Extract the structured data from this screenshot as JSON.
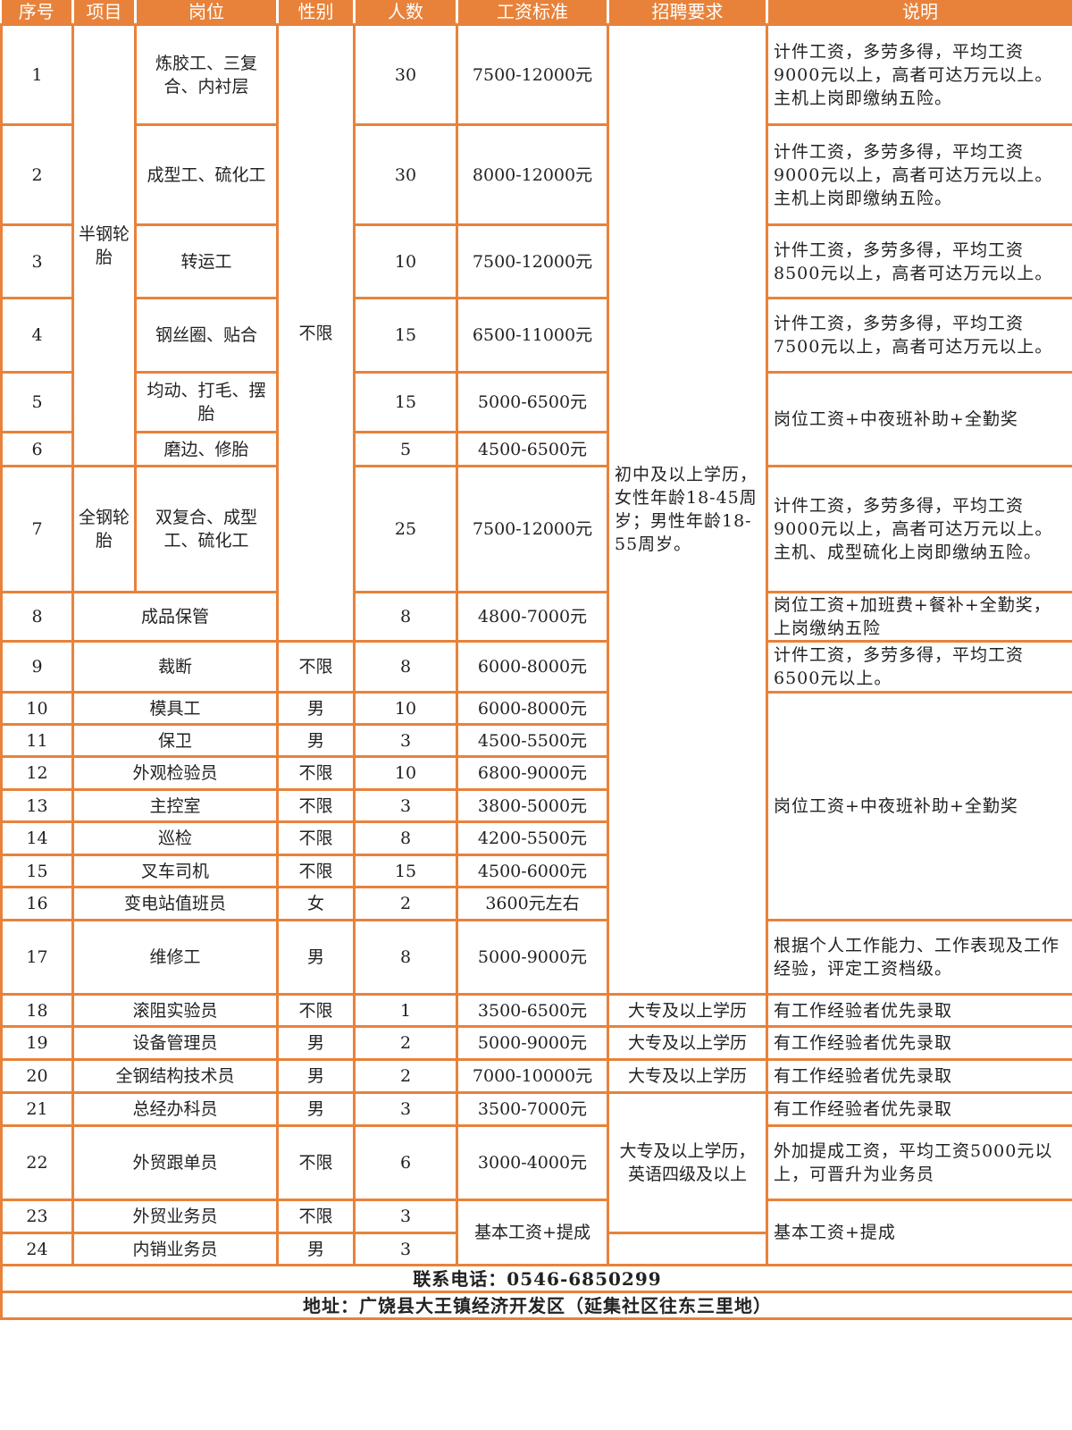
{
  "headers": [
    "序号",
    "项目",
    "岗位",
    "性别",
    "人数",
    "工资标准",
    "招聘要求",
    "说明"
  ],
  "rows": [
    {
      "no": "1",
      "project": "半钢轮胎",
      "position": "炼胶工、三复合、内衬层",
      "gender": "不限",
      "count": "30",
      "salary": "7500-12000元",
      "requirement": "初中及以上学历，女性年龄18-45周岁；男性年龄18-55周岁。",
      "note": "计件工资，多劳多得，平均工资9000元以上，高者可达万元以上。主机上岗即缴纳五险。"
    },
    {
      "no": "2",
      "position": "成型工、硫化工",
      "count": "30",
      "salary": "8000-12000元",
      "note": "计件工资，多劳多得，平均工资9000元以上，高者可达万元以上。主机上岗即缴纳五险。"
    },
    {
      "no": "3",
      "position": "转运工",
      "count": "10",
      "salary": "7500-12000元",
      "note": "计件工资，多劳多得，平均工资8500元以上，高者可达万元以上。"
    },
    {
      "no": "4",
      "position": "钢丝圈、贴合",
      "count": "15",
      "salary": "6500-11000元",
      "note": "计件工资，多劳多得，平均工资7500元以上，高者可达万元以上。"
    },
    {
      "no": "5",
      "position": "均动、打毛、摆胎",
      "count": "15",
      "salary": "5000-6500元",
      "note": "岗位工资+中夜班补助+全勤奖"
    },
    {
      "no": "6",
      "position": "磨边、修胎",
      "count": "5",
      "salary": "4500-6500元"
    },
    {
      "no": "7",
      "project": "全钢轮胎",
      "position": "双复合、成型工、硫化工",
      "count": "25",
      "salary": "7500-12000元",
      "note": "计件工资，多劳多得，平均工资9000元以上，高者可达万元以上。主机、成型硫化上岗即缴纳五险。"
    },
    {
      "no": "8",
      "position": "成品保管",
      "count": "8",
      "salary": "4800-7000元",
      "note": "岗位工资+加班费+餐补+全勤奖，上岗缴纳五险"
    },
    {
      "no": "9",
      "position": "裁断",
      "gender": "不限",
      "count": "8",
      "salary": "6000-8000元",
      "note": "计件工资，多劳多得，平均工资6500元以上。"
    },
    {
      "no": "10",
      "position": "模具工",
      "gender": "男",
      "count": "10",
      "salary": "6000-8000元",
      "note": "岗位工资+中夜班补助+全勤奖"
    },
    {
      "no": "11",
      "position": "保卫",
      "gender": "男",
      "count": "3",
      "salary": "4500-5500元"
    },
    {
      "no": "12",
      "position": "外观检验员",
      "gender": "不限",
      "count": "10",
      "salary": "6800-9000元"
    },
    {
      "no": "13",
      "position": "主控室",
      "gender": "不限",
      "count": "3",
      "salary": "3800-5000元"
    },
    {
      "no": "14",
      "position": "巡检",
      "gender": "不限",
      "count": "8",
      "salary": "4200-5500元"
    },
    {
      "no": "15",
      "position": "叉车司机",
      "gender": "不限",
      "count": "15",
      "salary": "4500-6000元"
    },
    {
      "no": "16",
      "position": "变电站值班员",
      "gender": "女",
      "count": "2",
      "salary": "3600元左右"
    },
    {
      "no": "17",
      "position": "维修工",
      "gender": "男",
      "count": "8",
      "salary": "5000-9000元",
      "note": "根据个人工作能力、工作表现及工作经验，评定工资档级。"
    },
    {
      "no": "18",
      "position": "滚阻实验员",
      "gender": "不限",
      "count": "1",
      "salary": "3500-6500元",
      "requirement": "大专及以上学历",
      "note": "有工作经验者优先录取"
    },
    {
      "no": "19",
      "position": "设备管理员",
      "gender": "男",
      "count": "2",
      "salary": "5000-9000元",
      "requirement": "大专及以上学历",
      "note": "有工作经验者优先录取"
    },
    {
      "no": "20",
      "position": "全钢结构技术员",
      "gender": "男",
      "count": "2",
      "salary": "7000-10000元",
      "requirement": "大专及以上学历",
      "note": "有工作经验者优先录取"
    },
    {
      "no": "21",
      "position": "总经办科员",
      "gender": "男",
      "count": "3",
      "salary": "3500-7000元",
      "requirement": "大专及以上学历，英语四级及以上",
      "note": "有工作经验者优先录取"
    },
    {
      "no": "22",
      "position": "外贸跟单员",
      "gender": "不限",
      "count": "6",
      "salary": "3000-4000元",
      "note": "外加提成工资，平均工资5000元以上，可晋升为业务员"
    },
    {
      "no": "23",
      "position": "外贸业务员",
      "gender": "不限",
      "count": "3",
      "salary": "基本工资+提成",
      "note": "基本工资+提成"
    },
    {
      "no": "24",
      "position": "内销业务员",
      "gender": "男",
      "count": "3"
    }
  ],
  "footer": {
    "phone": "联系电话：0546-6850299",
    "address": "地址：广饶县大王镇经济开发区（延集社区往东三里地）"
  },
  "colors": {
    "accent": "#E8823A",
    "header_text": "#FFFFFF"
  }
}
